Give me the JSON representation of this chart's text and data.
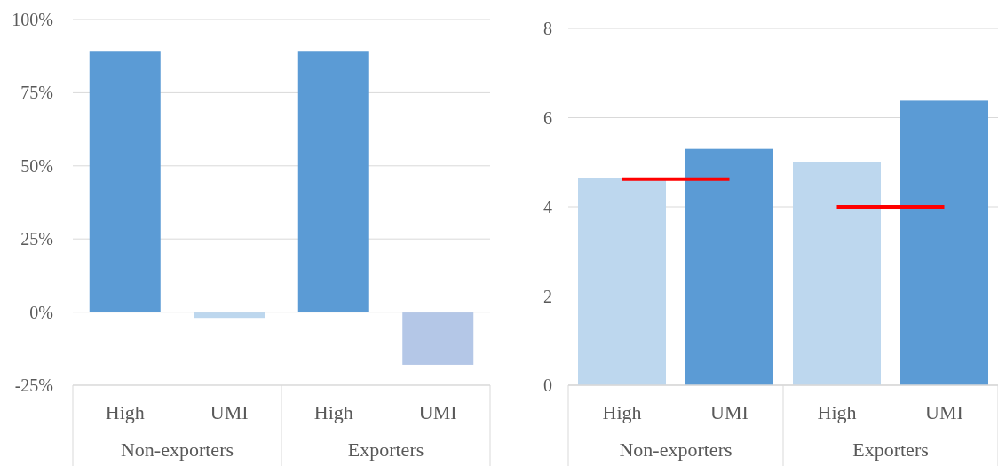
{
  "chart_data": [
    {
      "type": "bar",
      "categories": [
        "High",
        "UMI",
        "High",
        "UMI"
      ],
      "values": [
        89,
        -2,
        89,
        -18
      ],
      "colors": [
        "#5b9bd5",
        "#bdd7ee",
        "#5b9bd5",
        "#b4c7e7"
      ],
      "ylim": [
        -25,
        100
      ],
      "yticks": [
        {
          "value": -25,
          "label": "-25%"
        },
        {
          "value": 0,
          "label": "0%"
        },
        {
          "value": 25,
          "label": "25%"
        },
        {
          "value": 50,
          "label": "50%"
        },
        {
          "value": 75,
          "label": "75%"
        },
        {
          "value": 100,
          "label": "100%"
        }
      ],
      "grid": "y",
      "annotations": [
        "Non-exporters",
        "Exporters"
      ]
    },
    {
      "type": "bar",
      "categories": [
        "High",
        "UMI",
        "High",
        "UMI"
      ],
      "series": [
        {
          "type": "bar",
          "colors": [
            "#bdd7ee",
            "#5b9bd5",
            "#bdd7ee",
            "#5b9bd5"
          ],
          "values": [
            4.65,
            5.3,
            5.0,
            6.38
          ]
        },
        {
          "type": "line",
          "color": "#ff0000",
          "values": [
            4.62,
            4.62,
            null,
            null
          ]
        },
        {
          "type": "line",
          "color": "#ff0000",
          "values": [
            null,
            null,
            4.0,
            4.0
          ]
        }
      ],
      "ylim": [
        0,
        8
      ],
      "yticks": [
        0,
        2,
        4,
        6,
        8
      ],
      "grid": "y",
      "annotations": [
        "Non-exporters",
        "Exporters"
      ]
    }
  ]
}
